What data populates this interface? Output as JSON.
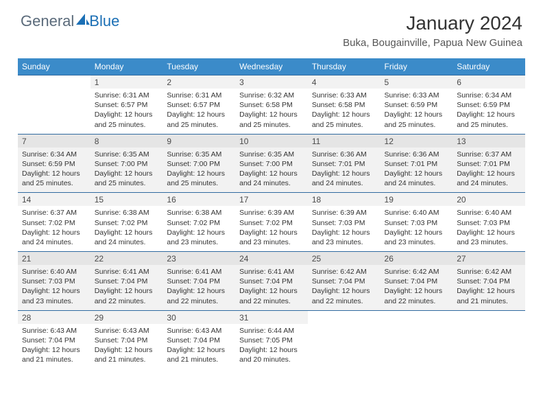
{
  "brand": {
    "name_part1": "General",
    "name_part2": "Blue"
  },
  "title": "January 2024",
  "location": "Buka, Bougainville, Papua New Guinea",
  "colors": {
    "header_bg": "#3b8bc9",
    "header_text": "#ffffff",
    "row_border": "#2f6aa0",
    "alt_row_bg": "#f2f2f2",
    "text": "#333333",
    "brand_grey": "#5a6a7a",
    "brand_blue": "#1b6fb5"
  },
  "day_headers": [
    "Sunday",
    "Monday",
    "Tuesday",
    "Wednesday",
    "Thursday",
    "Friday",
    "Saturday"
  ],
  "weeks": [
    [
      null,
      {
        "n": "1",
        "sr": "Sunrise: 6:31 AM",
        "ss": "Sunset: 6:57 PM",
        "dl": "Daylight: 12 hours and 25 minutes."
      },
      {
        "n": "2",
        "sr": "Sunrise: 6:31 AM",
        "ss": "Sunset: 6:57 PM",
        "dl": "Daylight: 12 hours and 25 minutes."
      },
      {
        "n": "3",
        "sr": "Sunrise: 6:32 AM",
        "ss": "Sunset: 6:58 PM",
        "dl": "Daylight: 12 hours and 25 minutes."
      },
      {
        "n": "4",
        "sr": "Sunrise: 6:33 AM",
        "ss": "Sunset: 6:58 PM",
        "dl": "Daylight: 12 hours and 25 minutes."
      },
      {
        "n": "5",
        "sr": "Sunrise: 6:33 AM",
        "ss": "Sunset: 6:59 PM",
        "dl": "Daylight: 12 hours and 25 minutes."
      },
      {
        "n": "6",
        "sr": "Sunrise: 6:34 AM",
        "ss": "Sunset: 6:59 PM",
        "dl": "Daylight: 12 hours and 25 minutes."
      }
    ],
    [
      {
        "n": "7",
        "sr": "Sunrise: 6:34 AM",
        "ss": "Sunset: 6:59 PM",
        "dl": "Daylight: 12 hours and 25 minutes."
      },
      {
        "n": "8",
        "sr": "Sunrise: 6:35 AM",
        "ss": "Sunset: 7:00 PM",
        "dl": "Daylight: 12 hours and 25 minutes."
      },
      {
        "n": "9",
        "sr": "Sunrise: 6:35 AM",
        "ss": "Sunset: 7:00 PM",
        "dl": "Daylight: 12 hours and 25 minutes."
      },
      {
        "n": "10",
        "sr": "Sunrise: 6:35 AM",
        "ss": "Sunset: 7:00 PM",
        "dl": "Daylight: 12 hours and 24 minutes."
      },
      {
        "n": "11",
        "sr": "Sunrise: 6:36 AM",
        "ss": "Sunset: 7:01 PM",
        "dl": "Daylight: 12 hours and 24 minutes."
      },
      {
        "n": "12",
        "sr": "Sunrise: 6:36 AM",
        "ss": "Sunset: 7:01 PM",
        "dl": "Daylight: 12 hours and 24 minutes."
      },
      {
        "n": "13",
        "sr": "Sunrise: 6:37 AM",
        "ss": "Sunset: 7:01 PM",
        "dl": "Daylight: 12 hours and 24 minutes."
      }
    ],
    [
      {
        "n": "14",
        "sr": "Sunrise: 6:37 AM",
        "ss": "Sunset: 7:02 PM",
        "dl": "Daylight: 12 hours and 24 minutes."
      },
      {
        "n": "15",
        "sr": "Sunrise: 6:38 AM",
        "ss": "Sunset: 7:02 PM",
        "dl": "Daylight: 12 hours and 24 minutes."
      },
      {
        "n": "16",
        "sr": "Sunrise: 6:38 AM",
        "ss": "Sunset: 7:02 PM",
        "dl": "Daylight: 12 hours and 23 minutes."
      },
      {
        "n": "17",
        "sr": "Sunrise: 6:39 AM",
        "ss": "Sunset: 7:02 PM",
        "dl": "Daylight: 12 hours and 23 minutes."
      },
      {
        "n": "18",
        "sr": "Sunrise: 6:39 AM",
        "ss": "Sunset: 7:03 PM",
        "dl": "Daylight: 12 hours and 23 minutes."
      },
      {
        "n": "19",
        "sr": "Sunrise: 6:40 AM",
        "ss": "Sunset: 7:03 PM",
        "dl": "Daylight: 12 hours and 23 minutes."
      },
      {
        "n": "20",
        "sr": "Sunrise: 6:40 AM",
        "ss": "Sunset: 7:03 PM",
        "dl": "Daylight: 12 hours and 23 minutes."
      }
    ],
    [
      {
        "n": "21",
        "sr": "Sunrise: 6:40 AM",
        "ss": "Sunset: 7:03 PM",
        "dl": "Daylight: 12 hours and 23 minutes."
      },
      {
        "n": "22",
        "sr": "Sunrise: 6:41 AM",
        "ss": "Sunset: 7:04 PM",
        "dl": "Daylight: 12 hours and 22 minutes."
      },
      {
        "n": "23",
        "sr": "Sunrise: 6:41 AM",
        "ss": "Sunset: 7:04 PM",
        "dl": "Daylight: 12 hours and 22 minutes."
      },
      {
        "n": "24",
        "sr": "Sunrise: 6:41 AM",
        "ss": "Sunset: 7:04 PM",
        "dl": "Daylight: 12 hours and 22 minutes."
      },
      {
        "n": "25",
        "sr": "Sunrise: 6:42 AM",
        "ss": "Sunset: 7:04 PM",
        "dl": "Daylight: 12 hours and 22 minutes."
      },
      {
        "n": "26",
        "sr": "Sunrise: 6:42 AM",
        "ss": "Sunset: 7:04 PM",
        "dl": "Daylight: 12 hours and 22 minutes."
      },
      {
        "n": "27",
        "sr": "Sunrise: 6:42 AM",
        "ss": "Sunset: 7:04 PM",
        "dl": "Daylight: 12 hours and 21 minutes."
      }
    ],
    [
      {
        "n": "28",
        "sr": "Sunrise: 6:43 AM",
        "ss": "Sunset: 7:04 PM",
        "dl": "Daylight: 12 hours and 21 minutes."
      },
      {
        "n": "29",
        "sr": "Sunrise: 6:43 AM",
        "ss": "Sunset: 7:04 PM",
        "dl": "Daylight: 12 hours and 21 minutes."
      },
      {
        "n": "30",
        "sr": "Sunrise: 6:43 AM",
        "ss": "Sunset: 7:04 PM",
        "dl": "Daylight: 12 hours and 21 minutes."
      },
      {
        "n": "31",
        "sr": "Sunrise: 6:44 AM",
        "ss": "Sunset: 7:05 PM",
        "dl": "Daylight: 12 hours and 20 minutes."
      },
      null,
      null,
      null
    ]
  ]
}
